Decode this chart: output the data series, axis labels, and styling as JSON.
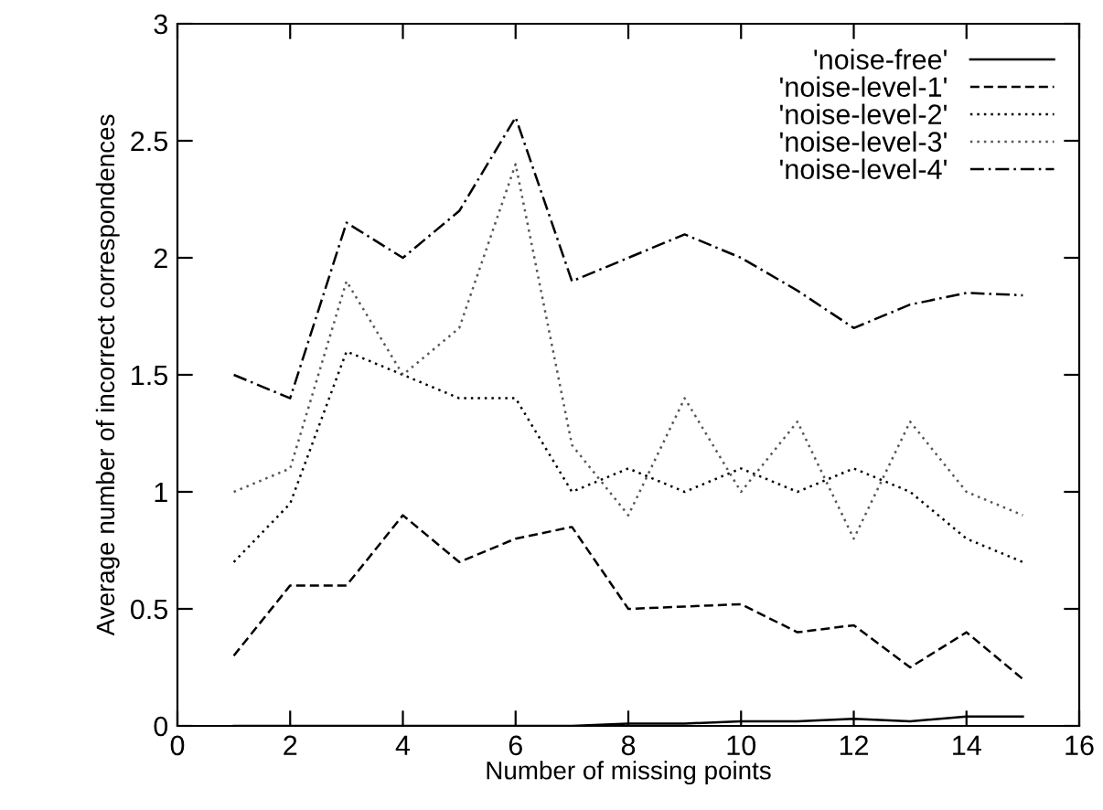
{
  "chart_data": {
    "type": "line",
    "xlabel": "Number of missing points",
    "ylabel": "Average number of incorrect correspondences",
    "x": [
      1,
      2,
      3,
      4,
      5,
      6,
      7,
      8,
      9,
      10,
      11,
      12,
      13,
      14,
      15
    ],
    "series": [
      {
        "name": "'noise-free'",
        "color": "#000000",
        "line_style": "solid",
        "values": [
          0,
          0,
          0,
          0,
          0,
          0,
          0,
          0.01,
          0.01,
          0.02,
          0.02,
          0.03,
          0.02,
          0.04,
          0.04
        ]
      },
      {
        "name": "'noise-level-1'",
        "color": "#000000",
        "line_style": "dashed",
        "values": [
          0.3,
          0.6,
          0.6,
          0.9,
          0.7,
          0.8,
          0.85,
          0.5,
          0.51,
          0.52,
          0.4,
          0.43,
          0.25,
          0.4,
          0.2
        ]
      },
      {
        "name": "'noise-level-2'",
        "color": "#000000",
        "line_style": "dotted",
        "values": [
          0.7,
          0.95,
          1.6,
          1.5,
          1.4,
          1.4,
          1.0,
          1.1,
          1.0,
          1.1,
          1.0,
          1.1,
          1.0,
          0.8,
          0.7
        ]
      },
      {
        "name": "'noise-level-3'",
        "color": "#555555",
        "line_style": "dotted",
        "values": [
          1.0,
          1.1,
          1.9,
          1.5,
          1.7,
          2.4,
          1.2,
          0.9,
          1.4,
          1.0,
          1.3,
          0.8,
          1.3,
          1.0,
          0.9
        ]
      },
      {
        "name": "'noise-level-4'",
        "color": "#000000",
        "line_style": "dashdot",
        "values": [
          1.5,
          1.4,
          2.15,
          2.0,
          2.2,
          2.6,
          1.9,
          2.0,
          2.1,
          2.0,
          1.86,
          1.7,
          1.8,
          1.85,
          1.84
        ]
      }
    ],
    "xlim": [
      0,
      16
    ],
    "xticks": [
      0,
      2,
      4,
      6,
      8,
      10,
      12,
      14,
      16
    ],
    "ylim": [
      0,
      3
    ],
    "yticks": [
      0,
      0.5,
      1,
      1.5,
      2,
      2.5,
      3
    ],
    "grid": false,
    "legend": "top right",
    "marker": "none"
  }
}
